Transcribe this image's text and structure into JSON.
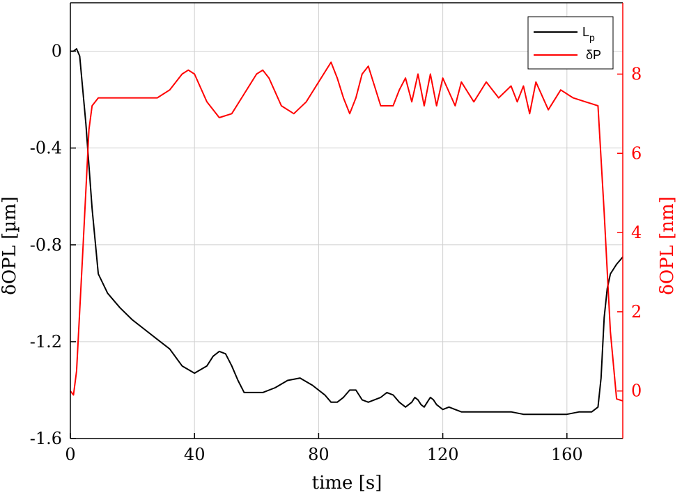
{
  "chart_data": {
    "type": "line",
    "xlabel": "time [s]",
    "ylabel_left": "δOPL [µm]",
    "ylabel_right": "δOPL [nm]",
    "xlim": [
      0,
      178
    ],
    "ylim_left": [
      -1.6,
      0.2
    ],
    "ylim_right": [
      -1.2,
      9.8
    ],
    "x_ticks": [
      0,
      40,
      80,
      120,
      160
    ],
    "x_tick_labels": [
      "0",
      "40",
      "80",
      "120",
      "160"
    ],
    "left_ticks": [
      0,
      -0.4,
      -0.8,
      -1.2,
      -1.6
    ],
    "left_tick_labels": [
      "0",
      "-0.4",
      "-0.8",
      "-1.2",
      "-1.6"
    ],
    "right_ticks": [
      0,
      2,
      4,
      6,
      8
    ],
    "right_tick_labels": [
      "0",
      "2",
      "4",
      "6",
      "8"
    ],
    "grid": true,
    "legend": {
      "position": "top-right",
      "entries": [
        {
          "label": "L",
          "subscript": "p",
          "color": "#000000"
        },
        {
          "label": "δP",
          "subscript": "",
          "color": "#ff0000"
        }
      ]
    },
    "colors": {
      "left_axis": "#000000",
      "right_axis": "#ff0000",
      "grid": "#d0d0d0"
    },
    "series": [
      {
        "name": "Lp",
        "axis": "left",
        "color": "#000000",
        "x": [
          0,
          1,
          2,
          3,
          5,
          7,
          9,
          12,
          16,
          20,
          24,
          28,
          32,
          36,
          40,
          44,
          46,
          48,
          50,
          52,
          54,
          56,
          58,
          62,
          66,
          70,
          74,
          78,
          82,
          84,
          86,
          88,
          90,
          92,
          94,
          96,
          100,
          102,
          104,
          106,
          108,
          110,
          111,
          112,
          113,
          114,
          115,
          116,
          117,
          118,
          119,
          120,
          122,
          124,
          126,
          130,
          134,
          138,
          142,
          146,
          150,
          155,
          160,
          164,
          168,
          170,
          171,
          172,
          173,
          174,
          176,
          178
        ],
        "y": [
          0,
          0,
          0.01,
          -0.02,
          -0.3,
          -0.65,
          -0.92,
          -1.0,
          -1.06,
          -1.11,
          -1.15,
          -1.19,
          -1.23,
          -1.3,
          -1.33,
          -1.3,
          -1.26,
          -1.24,
          -1.25,
          -1.3,
          -1.36,
          -1.41,
          -1.41,
          -1.41,
          -1.39,
          -1.36,
          -1.35,
          -1.38,
          -1.42,
          -1.45,
          -1.45,
          -1.43,
          -1.4,
          -1.4,
          -1.44,
          -1.45,
          -1.43,
          -1.41,
          -1.42,
          -1.45,
          -1.47,
          -1.45,
          -1.43,
          -1.44,
          -1.46,
          -1.47,
          -1.45,
          -1.43,
          -1.44,
          -1.46,
          -1.47,
          -1.48,
          -1.47,
          -1.48,
          -1.49,
          -1.49,
          -1.49,
          -1.49,
          -1.49,
          -1.5,
          -1.5,
          -1.5,
          -1.5,
          -1.49,
          -1.49,
          -1.47,
          -1.35,
          -1.1,
          -0.98,
          -0.92,
          -0.88,
          -0.85
        ]
      },
      {
        "name": "δP",
        "axis": "right",
        "color": "#ff0000",
        "x": [
          0,
          1,
          2,
          4,
          6,
          7,
          9,
          12,
          20,
          28,
          32,
          36,
          38,
          40,
          44,
          48,
          52,
          56,
          60,
          62,
          64,
          68,
          72,
          76,
          80,
          84,
          86,
          88,
          90,
          92,
          94,
          96,
          98,
          100,
          104,
          106,
          108,
          110,
          112,
          114,
          116,
          118,
          120,
          124,
          126,
          130,
          134,
          138,
          142,
          144,
          146,
          148,
          150,
          154,
          158,
          162,
          166,
          168,
          170,
          172,
          174,
          176,
          178
        ],
        "y": [
          0,
          -0.1,
          0.5,
          3.5,
          6.6,
          7.2,
          7.4,
          7.4,
          7.4,
          7.4,
          7.6,
          8.0,
          8.1,
          8.0,
          7.3,
          6.9,
          7.0,
          7.5,
          8.0,
          8.1,
          7.9,
          7.2,
          7.0,
          7.3,
          7.8,
          8.3,
          7.9,
          7.4,
          7.0,
          7.4,
          8.0,
          8.2,
          7.7,
          7.2,
          7.2,
          7.6,
          7.9,
          7.3,
          8.0,
          7.2,
          8.0,
          7.2,
          7.9,
          7.2,
          7.8,
          7.3,
          7.8,
          7.4,
          7.7,
          7.3,
          7.7,
          7.0,
          7.8,
          7.1,
          7.6,
          7.4,
          7.3,
          7.25,
          7.2,
          4.5,
          1.5,
          -0.2,
          -0.25
        ]
      }
    ]
  }
}
